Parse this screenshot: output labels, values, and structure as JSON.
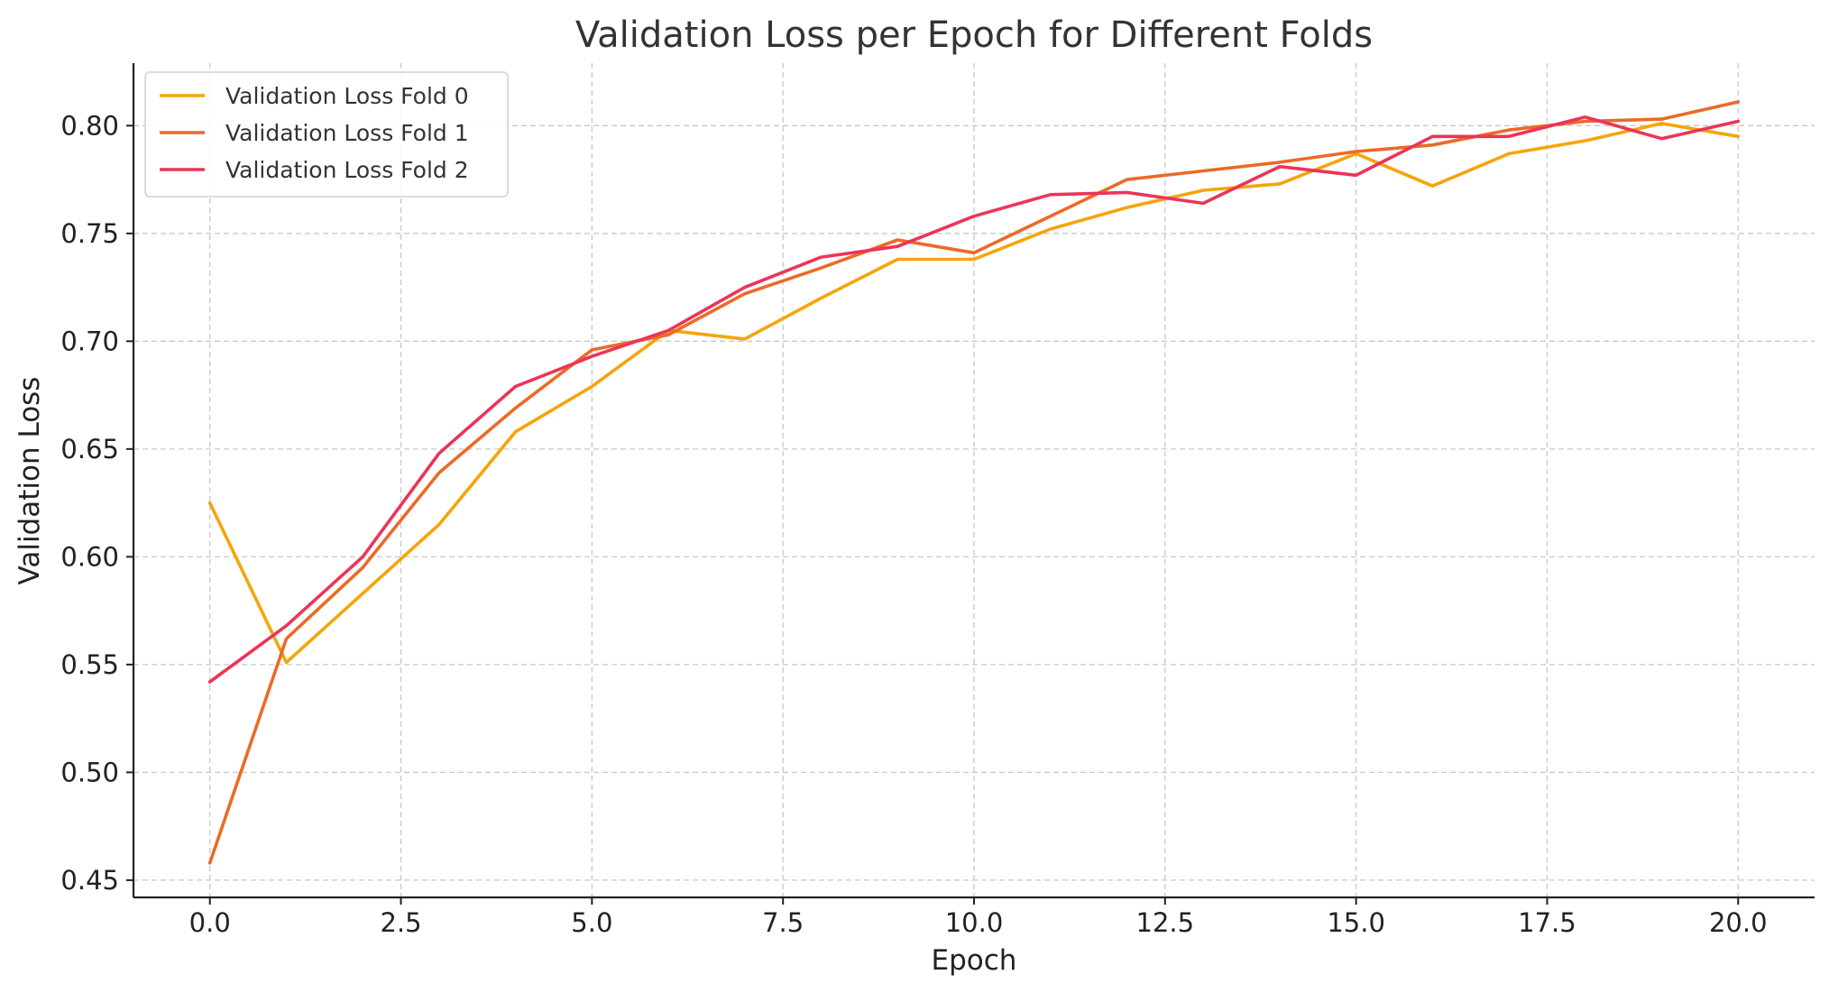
{
  "chart_data": {
    "type": "line",
    "title": "Validation Loss per Epoch for Different Folds",
    "xlabel": "Epoch",
    "ylabel": "Validation Loss",
    "xlim": [
      -1.0,
      21.0
    ],
    "ylim": [
      0.442,
      0.829
    ],
    "x_ticks": [
      "0.0",
      "2.5",
      "5.0",
      "7.5",
      "10.0",
      "12.5",
      "15.0",
      "17.5",
      "20.0"
    ],
    "y_ticks": [
      "0.45",
      "0.50",
      "0.55",
      "0.60",
      "0.65",
      "0.70",
      "0.75",
      "0.80"
    ],
    "grid": true,
    "legend_position": "top-left",
    "x": [
      0,
      1,
      2,
      3,
      4,
      5,
      6,
      7,
      8,
      9,
      10,
      11,
      12,
      13,
      14,
      15,
      16,
      17,
      18,
      19,
      20
    ],
    "series": [
      {
        "name": "Validation Loss Fold 0",
        "color": "#F5A50A",
        "values": [
          0.625,
          0.551,
          0.583,
          0.615,
          0.658,
          0.679,
          0.705,
          0.701,
          0.72,
          0.738,
          0.738,
          0.752,
          0.762,
          0.77,
          0.773,
          0.787,
          0.772,
          0.787,
          0.793,
          0.801,
          0.795
        ]
      },
      {
        "name": "Validation Loss Fold 1",
        "color": "#EC6A26",
        "values": [
          0.458,
          0.562,
          0.595,
          0.639,
          0.669,
          0.696,
          0.703,
          0.722,
          0.734,
          0.747,
          0.741,
          0.758,
          0.775,
          0.779,
          0.783,
          0.788,
          0.791,
          0.798,
          0.802,
          0.803,
          0.811
        ]
      },
      {
        "name": "Validation Loss Fold 2",
        "color": "#EC3458",
        "values": [
          0.542,
          0.568,
          0.6,
          0.648,
          0.679,
          0.693,
          0.705,
          0.725,
          0.739,
          0.744,
          0.758,
          0.768,
          0.769,
          0.764,
          0.781,
          0.777,
          0.795,
          0.795,
          0.804,
          0.794,
          0.802
        ]
      }
    ]
  }
}
